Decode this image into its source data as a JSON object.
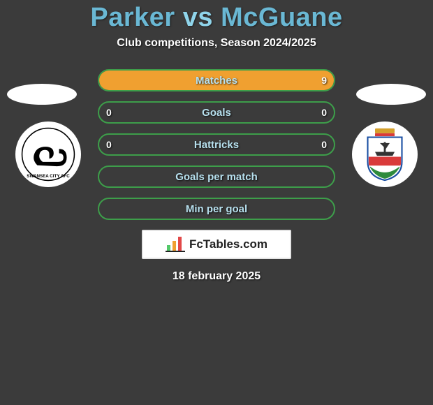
{
  "header": {
    "player_left": "Parker",
    "vs": "vs",
    "player_right": "McGuane",
    "subtitle": "Club competitions, Season 2024/2025"
  },
  "flags": {
    "left_color": "#ffffff",
    "right_color": "#ffffff"
  },
  "clubs": {
    "left_name": "swansea-city-badge",
    "right_name": "bristol-city-badge",
    "swan_body": "#000000",
    "swan_bg": "#ffffff",
    "crest_shield_fill": "#ffffff",
    "crest_shield_stroke": "#1a4fa3",
    "crest_ship": "#333333",
    "crest_band": "#d93a3a",
    "crest_grass": "#2e8b3d"
  },
  "stats": {
    "border_color": "#3d9e4a",
    "fill_color": "#f0a030",
    "label_color": "#b7e0ee",
    "value_color": "#ffffff",
    "rows": [
      {
        "label": "Matches",
        "left": "",
        "right": "9",
        "fill_pct": 100
      },
      {
        "label": "Goals",
        "left": "0",
        "right": "0",
        "fill_pct": 0
      },
      {
        "label": "Hattricks",
        "left": "0",
        "right": "0",
        "fill_pct": 0
      },
      {
        "label": "Goals per match",
        "left": "",
        "right": "",
        "fill_pct": 0
      },
      {
        "label": "Min per goal",
        "left": "",
        "right": "",
        "fill_pct": 0
      }
    ]
  },
  "badge": {
    "text": "FcTables.com",
    "bg": "#ffffff",
    "border": "#e5e5e5",
    "bar_colors": [
      "#54c96a",
      "#f0a030",
      "#e24848"
    ]
  },
  "footer": {
    "date": "18 february 2025"
  },
  "page": {
    "bg": "#3b3b3b",
    "title_color": "#6ab8d4"
  }
}
